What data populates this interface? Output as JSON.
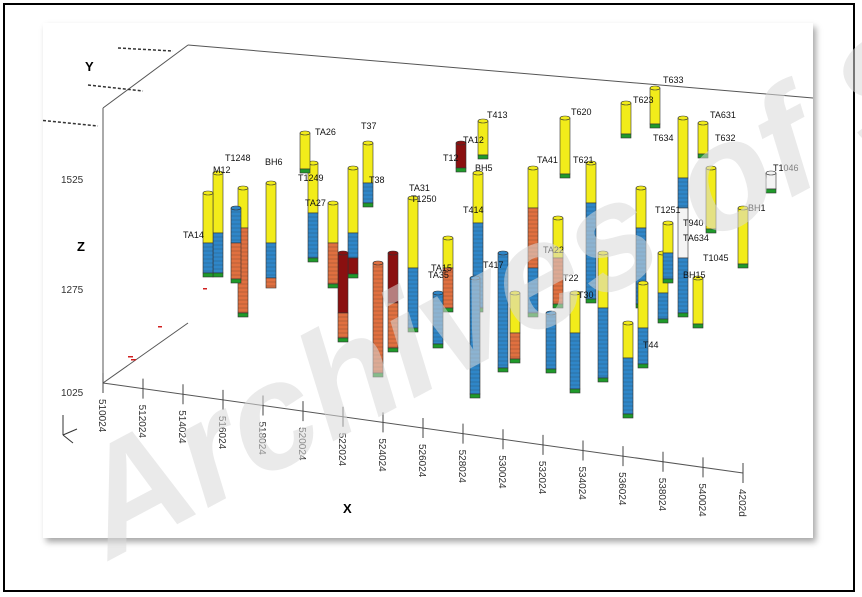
{
  "axes": {
    "y_label": "Y",
    "z_label": "Z",
    "x_label": "X",
    "z_ticks": [
      "1525",
      "1275",
      "1025"
    ],
    "x_ticks": [
      "510024",
      "512024",
      "514024",
      "516024",
      "518024",
      "520024",
      "522024",
      "524024",
      "526024",
      "528024",
      "530024",
      "532024",
      "534024",
      "536024",
      "538024",
      "540024",
      "4202d"
    ]
  },
  "colors": {
    "yellow": "#f2ec1a",
    "blue": "#2f86c8",
    "orange": "#e07040",
    "red": "#8a1010",
    "green": "#1f9a2a",
    "white": "#f4f4f4"
  },
  "boreholes": [
    {
      "label": "T1248"
    },
    {
      "label": "M12"
    },
    {
      "label": "BH6"
    },
    {
      "label": "T1249"
    },
    {
      "label": "TA26"
    },
    {
      "label": "T37"
    },
    {
      "label": "T38"
    },
    {
      "label": "TA27"
    },
    {
      "label": "T1250"
    },
    {
      "label": "TA31"
    },
    {
      "label": "T12"
    },
    {
      "label": "TA12"
    },
    {
      "label": "T413"
    },
    {
      "label": "BH5"
    },
    {
      "label": "T414"
    },
    {
      "label": "TA41"
    },
    {
      "label": "T620"
    },
    {
      "label": "T621"
    },
    {
      "label": "T623"
    },
    {
      "label": "T633"
    },
    {
      "label": "T634"
    },
    {
      "label": "TA631"
    },
    {
      "label": "T632"
    },
    {
      "label": "T1046"
    },
    {
      "label": "BH1"
    },
    {
      "label": "T1045"
    },
    {
      "label": "BH15"
    },
    {
      "label": "T940"
    },
    {
      "label": "TA634"
    },
    {
      "label": "T1251"
    },
    {
      "label": "TA14"
    },
    {
      "label": "TA22"
    },
    {
      "label": "T44"
    },
    {
      "label": "T417"
    },
    {
      "label": "TA15"
    },
    {
      "label": "TA35"
    },
    {
      "label": "T22"
    },
    {
      "label": "T30"
    }
  ],
  "watermark": "Archives of SID"
}
